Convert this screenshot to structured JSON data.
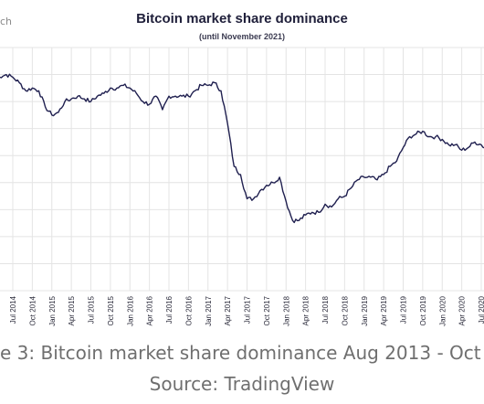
{
  "brand": "ch",
  "caption": {
    "line1": "e 3: Bitcoin market share dominance Aug 2013 - Oct 2",
    "line2": "Source: TradingView"
  },
  "colors": {
    "line": "#1f1f4f",
    "grid": "#e4e4e4",
    "text": "#2a2a3a"
  },
  "chart_data": {
    "type": "line",
    "title": "Bitcoin market share dominance",
    "subtitle": "(until November 2021)",
    "xlabel": "",
    "ylabel": "",
    "grid": true,
    "x_ticks": [
      "Jul 2014",
      "Oct 2014",
      "Jan 2015",
      "Apr 2015",
      "Jul 2015",
      "Oct 2015",
      "Jan 2016",
      "Apr 2016",
      "Jul 2016",
      "Oct 2016",
      "Jan 2017",
      "Apr 2017",
      "Jul 2017",
      "Oct 2017",
      "Jan 2018",
      "Apr 2018",
      "Jul 2018",
      "Oct 2018",
      "Jan 2019",
      "Apr 2019",
      "Jul 2019",
      "Oct 2019",
      "Jan 2020",
      "Apr 2020",
      "Jul 2020"
    ],
    "ylim": [
      10,
      100
    ],
    "series": [
      {
        "x": [
          "2014-04",
          "2014-05",
          "2014-06",
          "2014-07",
          "2014-08",
          "2014-09",
          "2014-10",
          "2014-11",
          "2014-12",
          "2015-01",
          "2015-02",
          "2015-03",
          "2015-04",
          "2015-05",
          "2015-06",
          "2015-07",
          "2015-08",
          "2015-09",
          "2015-10",
          "2015-11",
          "2015-12",
          "2016-01",
          "2016-02",
          "2016-03",
          "2016-04",
          "2016-05",
          "2016-06",
          "2016-07",
          "2016-08",
          "2016-09",
          "2016-10",
          "2016-11",
          "2016-12",
          "2017-01",
          "2017-02",
          "2017-03",
          "2017-04",
          "2017-05",
          "2017-06",
          "2017-07",
          "2017-08",
          "2017-09",
          "2017-10",
          "2017-11",
          "2017-12",
          "2018-01",
          "2018-02",
          "2018-03",
          "2018-04",
          "2018-05",
          "2018-06",
          "2018-07",
          "2018-08",
          "2018-09",
          "2018-10",
          "2018-11",
          "2018-12",
          "2019-01",
          "2019-02",
          "2019-03",
          "2019-04",
          "2019-05",
          "2019-06",
          "2019-07",
          "2019-08",
          "2019-09",
          "2019-10",
          "2019-11",
          "2019-12",
          "2020-01",
          "2020-02",
          "2020-03",
          "2020-04",
          "2020-05",
          "2020-06",
          "2020-07",
          "2020-08",
          "2020-09"
        ],
        "y": [
          89,
          89,
          90,
          89,
          87,
          84,
          85,
          84,
          78,
          75,
          76,
          80,
          81,
          82,
          81,
          80,
          82,
          83,
          85,
          85,
          86,
          85,
          83,
          80,
          79,
          82,
          77,
          82,
          82,
          82,
          82,
          84,
          86,
          86,
          87,
          84,
          72,
          56,
          53,
          44,
          44,
          47,
          49,
          50,
          52,
          43,
          36,
          36,
          38,
          39,
          39,
          42,
          41,
          44,
          45,
          48,
          51,
          52,
          52,
          51,
          53,
          56,
          58,
          63,
          67,
          68,
          69,
          67,
          67,
          66,
          64,
          64,
          62,
          63,
          65,
          64,
          62,
          60
        ]
      }
    ]
  }
}
